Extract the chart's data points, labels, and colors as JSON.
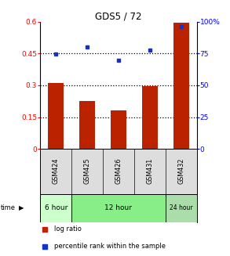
{
  "title": "GDS5 / 72",
  "samples": [
    "GSM424",
    "GSM425",
    "GSM426",
    "GSM431",
    "GSM432"
  ],
  "log_ratio": [
    0.31,
    0.225,
    0.18,
    0.295,
    0.595
  ],
  "percentile_rank": [
    74.5,
    80.0,
    70.0,
    77.5,
    96.0
  ],
  "bar_color": "#bb2200",
  "dot_color": "#1133cc",
  "left_ylim": [
    0,
    0.6
  ],
  "right_ylim": [
    0,
    100
  ],
  "left_yticks": [
    0,
    0.15,
    0.3,
    0.45,
    0.6
  ],
  "left_yticklabels": [
    "0",
    "0.15",
    "0.3",
    "0.45",
    "0.6"
  ],
  "right_yticks": [
    0,
    25,
    50,
    75,
    100
  ],
  "right_yticklabels": [
    "0",
    "25",
    "50",
    "75",
    "100%"
  ],
  "hlines": [
    0.15,
    0.3,
    0.45
  ],
  "time_groups": [
    {
      "label": "6 hour",
      "indices": [
        0
      ],
      "color": "#ccffcc"
    },
    {
      "label": "12 hour",
      "indices": [
        1,
        2,
        3
      ],
      "color": "#88ee88"
    },
    {
      "label": "24 hour",
      "indices": [
        4
      ],
      "color": "#aaddaa"
    }
  ],
  "legend_items": [
    {
      "label": "log ratio",
      "color": "#bb2200"
    },
    {
      "label": "percentile rank within the sample",
      "color": "#1133cc"
    }
  ],
  "background_color": "#ffffff"
}
